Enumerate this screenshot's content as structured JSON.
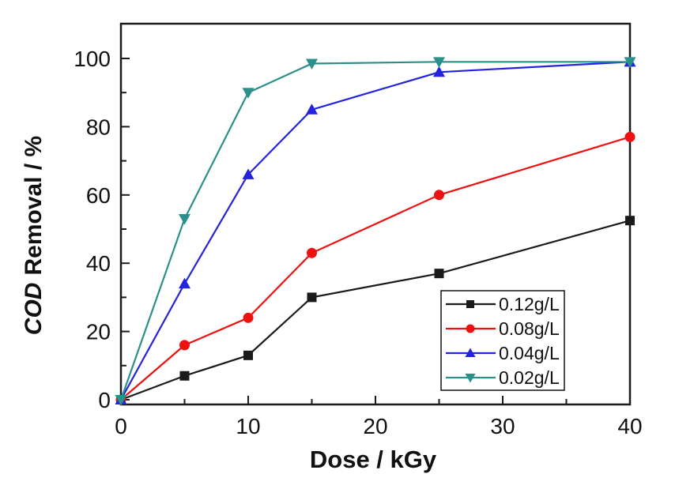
{
  "figure": {
    "background": "#ffffff",
    "frame_color": "#1a1a1a",
    "tick_label_color": "#111111"
  },
  "chart_data": {
    "type": "line",
    "title": "",
    "xlabel": "Dose / kGy",
    "ylabel": "COD Removal / %",
    "ylabel_italic_part": "COD",
    "ylabel_regular_part": "Removal / %",
    "xlim": [
      0,
      40
    ],
    "ylim": [
      0,
      110
    ],
    "grid": false,
    "legend_position": "inside-bottom-right",
    "x_major_ticks": [
      0,
      10,
      20,
      30,
      40
    ],
    "x_minor_ticks": [
      5,
      15,
      25,
      35
    ],
    "y_major_ticks": [
      0,
      20,
      40,
      60,
      80,
      100
    ],
    "y_minor_ticks": [
      10,
      30,
      50,
      70,
      90
    ],
    "x": [
      0,
      5,
      10,
      15,
      25,
      40
    ],
    "series": [
      {
        "name": "0.12g/L",
        "color": "#1a1a1a",
        "marker": "square",
        "values": [
          0,
          7,
          13,
          30,
          37,
          52.5
        ]
      },
      {
        "name": "0.08g/L",
        "color": "#ee1111",
        "marker": "circle",
        "values": [
          0,
          16,
          24,
          43,
          60,
          77
        ]
      },
      {
        "name": "0.04g/L",
        "color": "#2323dd",
        "marker": "triangle-up",
        "values": [
          0,
          34,
          66,
          85,
          96,
          99
        ]
      },
      {
        "name": "0.02g/L",
        "color": "#2b9089",
        "marker": "triangle-down",
        "values": [
          0,
          53,
          90,
          98.5,
          99,
          99
        ]
      }
    ]
  }
}
